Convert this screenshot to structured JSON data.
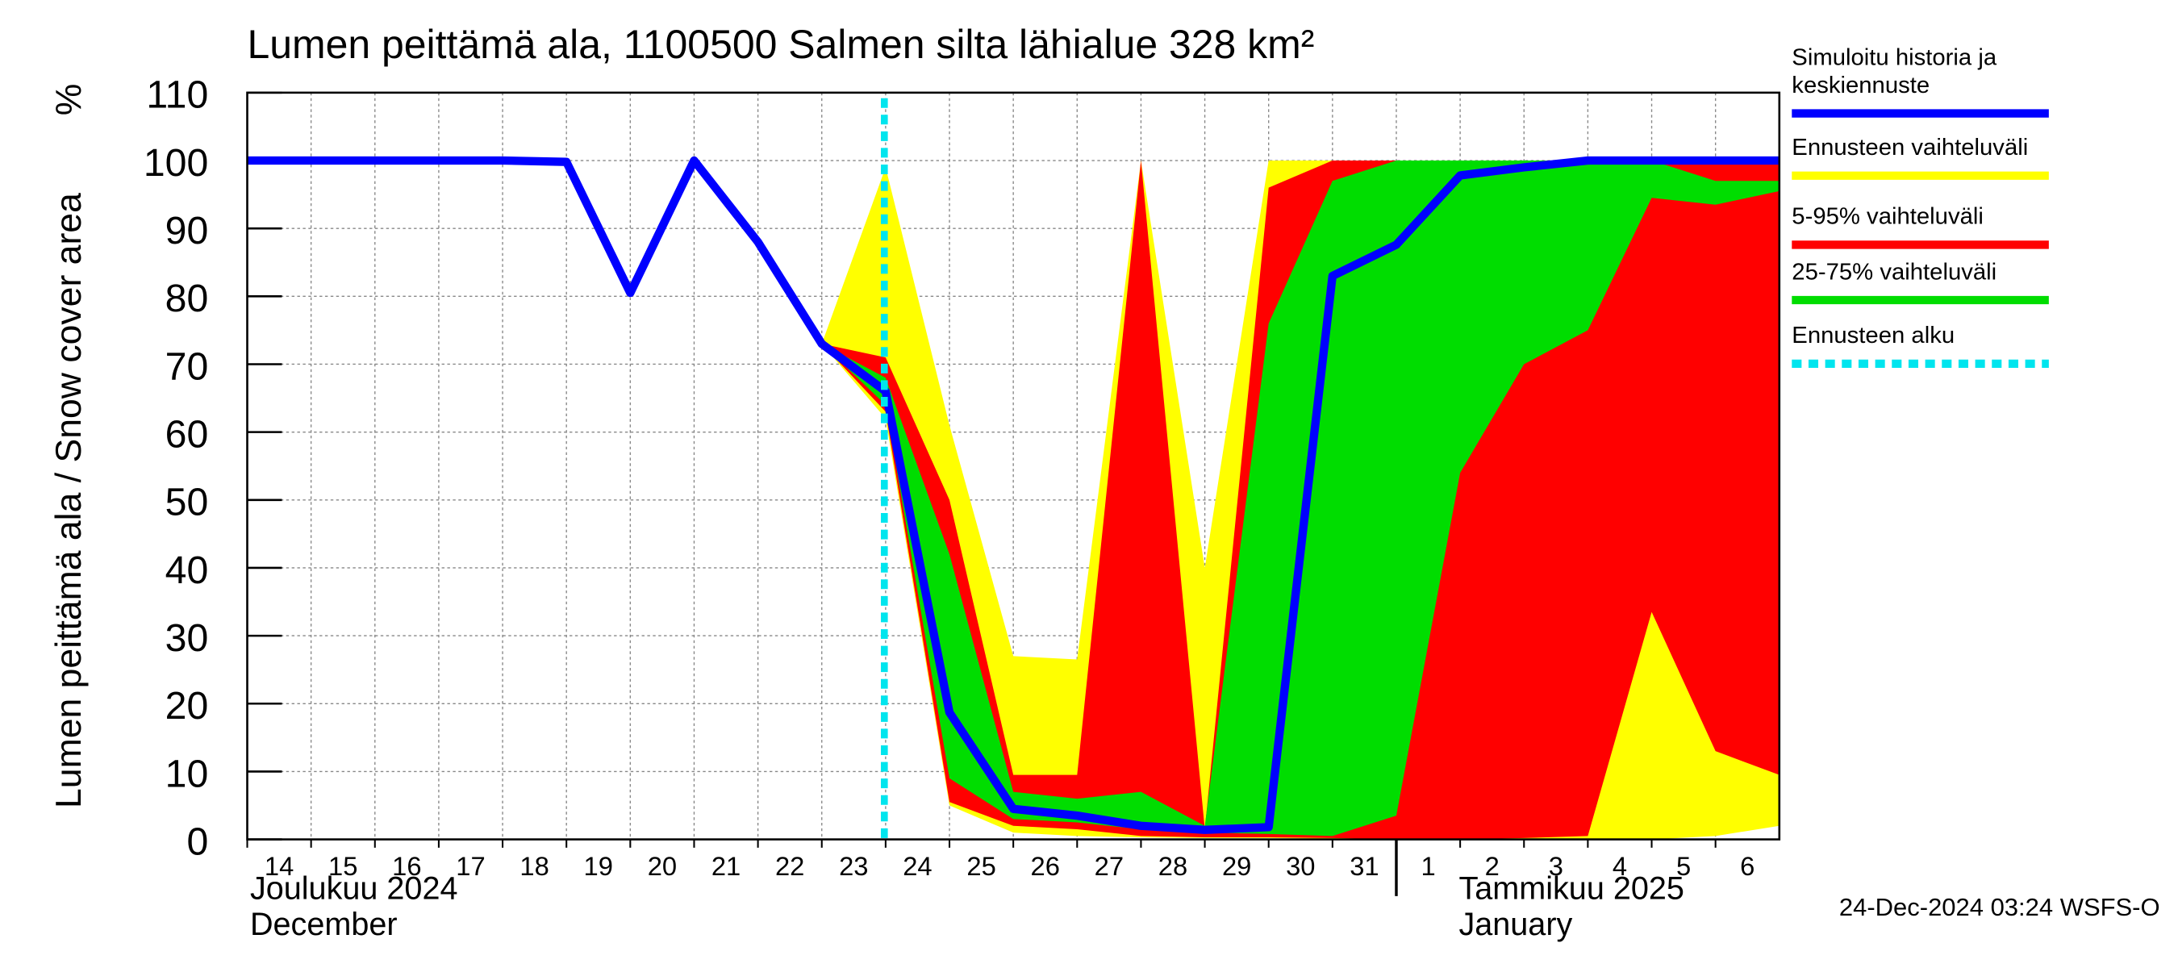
{
  "chart_data": {
    "type": "band-line",
    "title": "Lumen peittämä ala, 1100500 Salmen silta lähialue 328 km²",
    "y_label": "Lumen peittämä ala / Snow cover area",
    "y_unit": "%",
    "month_labels": [
      {
        "x": 0,
        "line1": "Joulukuu  2024",
        "line2": "December"
      },
      {
        "x": 18,
        "line1": "Tammikuu  2025",
        "line2": "January"
      }
    ],
    "footer": "24-Dec-2024 03:24 WSFS-O",
    "xlim": [
      0,
      24
    ],
    "xticks": [
      {
        "value": 0,
        "label": "14"
      },
      {
        "value": 1,
        "label": "15"
      },
      {
        "value": 2,
        "label": "16"
      },
      {
        "value": 3,
        "label": "17"
      },
      {
        "value": 4,
        "label": "18"
      },
      {
        "value": 5,
        "label": "19"
      },
      {
        "value": 6,
        "label": "20"
      },
      {
        "value": 7,
        "label": "21"
      },
      {
        "value": 8,
        "label": "22"
      },
      {
        "value": 9,
        "label": "23"
      },
      {
        "value": 10,
        "label": "24"
      },
      {
        "value": 11,
        "label": "25"
      },
      {
        "value": 12,
        "label": "26"
      },
      {
        "value": 13,
        "label": "27"
      },
      {
        "value": 14,
        "label": "28"
      },
      {
        "value": 15,
        "label": "29"
      },
      {
        "value": 16,
        "label": "30"
      },
      {
        "value": 17,
        "label": "31"
      },
      {
        "value": 18,
        "label": "1"
      },
      {
        "value": 19,
        "label": "2"
      },
      {
        "value": 20,
        "label": "3"
      },
      {
        "value": 21,
        "label": "4"
      },
      {
        "value": 22,
        "label": "5"
      },
      {
        "value": 23,
        "label": "6"
      }
    ],
    "ylim": [
      0,
      110
    ],
    "yticks": [
      0,
      10,
      20,
      30,
      40,
      50,
      60,
      70,
      80,
      90,
      100,
      110
    ],
    "grid": true,
    "x": [
      0,
      1,
      2,
      3,
      4,
      5,
      6,
      7,
      8,
      9,
      10,
      11,
      12,
      13,
      14,
      15,
      16,
      17,
      18,
      19,
      20,
      21,
      22,
      23,
      24
    ],
    "bands": [
      {
        "name": "Ennusteen vaihteluväli",
        "color": "#ffff00",
        "upper": [
          null,
          null,
          null,
          null,
          null,
          null,
          null,
          null,
          null,
          73,
          99,
          61,
          27,
          26.5,
          100,
          40,
          100,
          100,
          100,
          100,
          100,
          100,
          100,
          100,
          100
        ],
        "lower": [
          null,
          null,
          null,
          null,
          null,
          null,
          null,
          null,
          null,
          73,
          62,
          5,
          1,
          0.5,
          0.3,
          0.2,
          0.2,
          0.1,
          0,
          0,
          0,
          0,
          0,
          0.5,
          2
        ]
      },
      {
        "name": "5-95% vaihteluväli",
        "color": "#ff0000",
        "upper": [
          null,
          null,
          null,
          null,
          null,
          null,
          null,
          null,
          null,
          73,
          71,
          50,
          9.5,
          9.5,
          100,
          1.5,
          96,
          100,
          100,
          100,
          100,
          100,
          100,
          100,
          100
        ],
        "lower": [
          null,
          null,
          null,
          null,
          null,
          null,
          null,
          null,
          null,
          73,
          63,
          5.5,
          2,
          1.5,
          0.5,
          0.3,
          0.3,
          0.2,
          0,
          0,
          0.2,
          0.5,
          33.5,
          13,
          9.5
        ]
      },
      {
        "name": "25-75% vaihteluväli",
        "color": "#00dd00",
        "upper": [
          null,
          null,
          null,
          null,
          null,
          null,
          null,
          null,
          null,
          73,
          68,
          42,
          7,
          6,
          7,
          2,
          76,
          97,
          100,
          100,
          100,
          100,
          100,
          97,
          97
        ],
        "lower": [
          null,
          null,
          null,
          null,
          null,
          null,
          null,
          null,
          null,
          73,
          64,
          9,
          3,
          2.5,
          1.5,
          1,
          0.8,
          0.5,
          3.5,
          54,
          70,
          75,
          94.5,
          93.5,
          95.5
        ]
      }
    ],
    "line": {
      "name": "Simuloitu historia ja keskiennuste",
      "color": "#0000ff",
      "values": [
        100,
        100,
        100,
        100,
        100,
        99.8,
        80.5,
        100,
        88,
        73,
        66,
        18.7,
        4.5,
        3.5,
        2,
        1.4,
        1.8,
        83,
        87.6,
        97.8,
        99,
        100,
        100,
        100,
        100
      ]
    },
    "forecast_start": {
      "name": "Ennusteen alku",
      "color": "#00e5ee",
      "x": 9.98
    }
  }
}
